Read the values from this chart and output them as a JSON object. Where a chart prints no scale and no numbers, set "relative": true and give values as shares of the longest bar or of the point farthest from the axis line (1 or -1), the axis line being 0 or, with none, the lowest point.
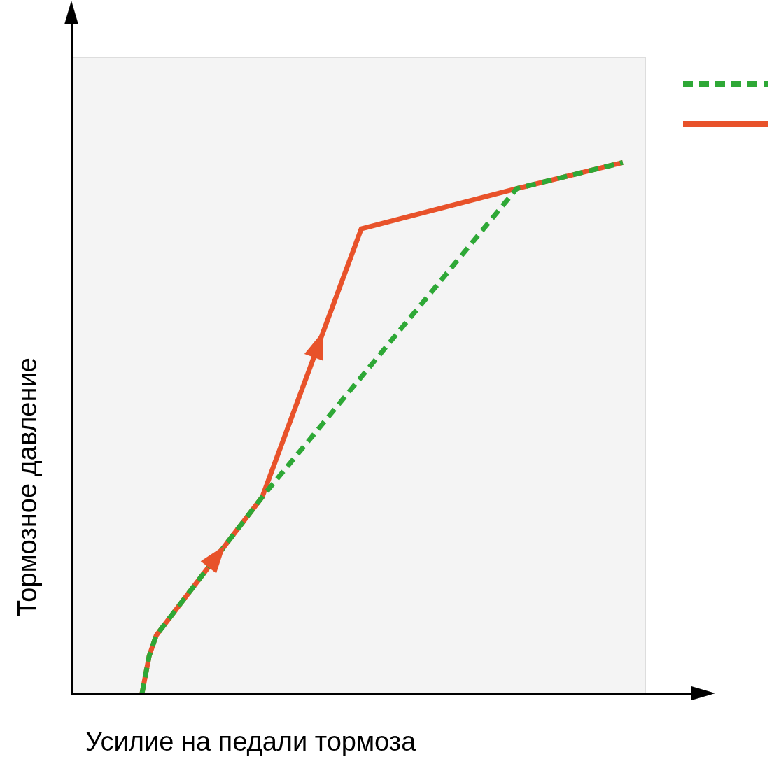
{
  "chart_data": {
    "type": "line",
    "xlabel": "Усилие на педали тормоза",
    "ylabel": "Тормозное давление",
    "relative": true,
    "grid": false,
    "marker": "none",
    "categories": [
      null,
      null,
      null,
      null,
      null,
      null,
      null,
      null,
      null,
      null,
      null,
      null,
      null,
      null,
      null,
      null,
      null,
      null,
      null,
      null,
      null,
      null,
      null,
      null,
      null,
      null,
      null,
      null,
      null,
      null,
      null,
      null,
      null,
      null,
      null,
      null,
      null,
      null,
      null,
      null,
      null,
      null,
      null,
      null,
      null,
      null,
      null,
      null,
      null,
      null,
      null,
      null,
      null,
      null,
      null,
      null,
      null,
      null,
      null,
      null,
      null,
      null,
      null,
      null,
      null,
      null,
      null,
      null,
      null,
      null,
      null,
      null,
      null,
      null,
      null,
      null,
      null,
      null,
      null,
      null,
      null,
      null,
      null,
      null,
      null,
      null,
      null,
      null,
      null,
      null
    ],
    "series": [
      {
        "color": "#e8522a",
        "line_style": "solid",
        "values": [
          null,
          null,
          null,
          null,
          null,
          null,
          null,
          null,
          null,
          null,
          0,
          0.07,
          0.109,
          null,
          null,
          null,
          null,
          null,
          null,
          null,
          null,
          null,
          null,
          null,
          null,
          null,
          null,
          0.37,
          null,
          null,
          null,
          null,
          null,
          null,
          null,
          null,
          null,
          null,
          null,
          null,
          null,
          0.875,
          null,
          null,
          null,
          null,
          null,
          null,
          null,
          null,
          null,
          null,
          null,
          null,
          null,
          null,
          null,
          null,
          null,
          null,
          null,
          null,
          null,
          0.951,
          null,
          null,
          null,
          null,
          null,
          null,
          null,
          null,
          null,
          null,
          null,
          null,
          null,
          null,
          1,
          null,
          null,
          null,
          null,
          null,
          null,
          null,
          null,
          null,
          null,
          null
        ]
      },
      {
        "color": "#2ea836",
        "line_style": "dashed",
        "values": [
          null,
          null,
          null,
          null,
          null,
          null,
          null,
          null,
          null,
          null,
          0,
          0.07,
          0.109,
          null,
          null,
          null,
          null,
          null,
          null,
          null,
          null,
          null,
          null,
          null,
          null,
          null,
          null,
          0.37,
          null,
          null,
          null,
          null,
          null,
          null,
          null,
          null,
          null,
          null,
          null,
          null,
          null,
          null,
          null,
          null,
          null,
          null,
          null,
          null,
          null,
          null,
          null,
          null,
          null,
          null,
          null,
          null,
          null,
          null,
          null,
          null,
          null,
          null,
          null,
          0.951,
          null,
          null,
          null,
          null,
          null,
          null,
          null,
          null,
          null,
          null,
          null,
          null,
          null,
          null,
          1,
          null,
          null,
          null,
          null,
          null,
          null,
          null,
          null,
          null,
          null,
          null
        ]
      }
    ]
  }
}
